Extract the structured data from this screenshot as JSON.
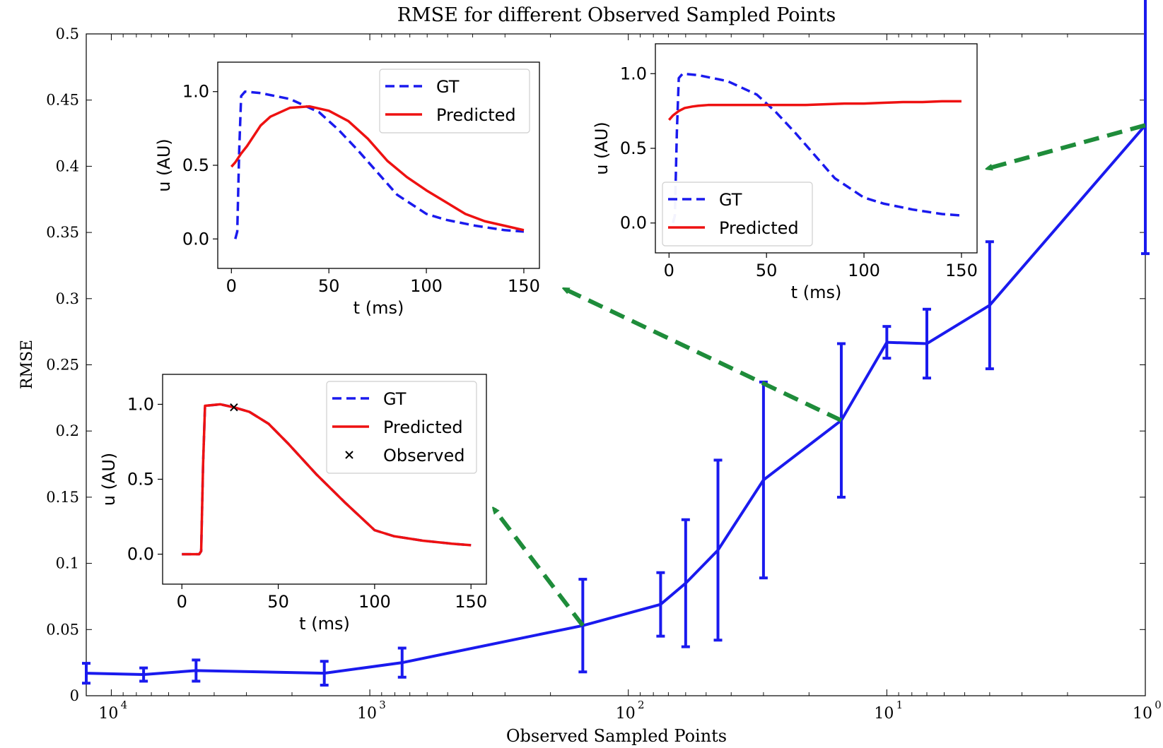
{
  "chart_data": [
    {
      "type": "line",
      "title": "RMSE for different Observed Sampled Points",
      "xlabel": "Observed Sampled Points",
      "ylabel": "RMSE",
      "x_scale": "log",
      "x_reversed": true,
      "xlim": [
        12500,
        1
      ],
      "ylim": [
        0,
        0.5
      ],
      "x_ticks": [
        {
          "value": 10000,
          "label": "10",
          "exp": "4"
        },
        {
          "value": 1000,
          "label": "10",
          "exp": "3"
        },
        {
          "value": 100,
          "label": "10",
          "exp": "2"
        },
        {
          "value": 10,
          "label": "10",
          "exp": "1"
        },
        {
          "value": 1,
          "label": "10",
          "exp": "0"
        }
      ],
      "y_ticks": [
        {
          "value": 0,
          "label": "0"
        },
        {
          "value": 0.05,
          "label": "0.05"
        },
        {
          "value": 0.1,
          "label": "0.1"
        },
        {
          "value": 0.15,
          "label": "0.15"
        },
        {
          "value": 0.2,
          "label": "0.2"
        },
        {
          "value": 0.25,
          "label": "0.25"
        },
        {
          "value": 0.3,
          "label": "0.3"
        },
        {
          "value": 0.35,
          "label": "0.35"
        },
        {
          "value": 0.4,
          "label": "0.4"
        },
        {
          "value": 0.45,
          "label": "0.45"
        },
        {
          "value": 0.5,
          "label": "0.5"
        }
      ],
      "grid": false,
      "series": [
        {
          "color": "#1a1aee",
          "x": [
            12500,
            7500,
            4700,
            1500,
            750,
            150,
            75,
            60,
            45,
            30,
            15,
            10,
            7,
            4,
            1
          ],
          "y": [
            0.017,
            0.016,
            0.019,
            0.017,
            0.025,
            0.053,
            0.069,
            0.085,
            0.11,
            0.163,
            0.208,
            0.267,
            0.266,
            0.295,
            0.431
          ],
          "err": [
            0.0075,
            0.005,
            0.008,
            0.009,
            0.011,
            0.035,
            0.024,
            0.048,
            0.068,
            0.074,
            0.058,
            0.012,
            0.026,
            0.048,
            0.097
          ]
        }
      ],
      "arrows": [
        {
          "from": {
            "x": 150,
            "y": 0.053
          },
          "to_inset": 0
        },
        {
          "from": {
            "x": 15,
            "y": 0.208
          },
          "to_inset": 1
        },
        {
          "from": {
            "x": 1,
            "y": 0.431
          },
          "to_inset": 2
        }
      ],
      "arrow_color": "#1e8c3a"
    },
    {
      "type": "line",
      "xlabel": "t (ms)",
      "ylabel": "u (AU)",
      "xlim": [
        -10,
        158
      ],
      "ylim": [
        -0.2,
        1.2
      ],
      "x_ticks": [
        0,
        50,
        100,
        150
      ],
      "y_ticks": [
        "0.0",
        "0.5",
        "1.0"
      ],
      "legend_position": "upper-right",
      "series": [
        {
          "name": "GT",
          "style": "dashed",
          "color": "#1a1aee",
          "x": [
            0,
            9,
            10,
            11,
            12,
            20,
            27,
            35,
            45,
            55,
            70,
            85,
            100,
            110,
            125,
            140,
            150
          ],
          "y": [
            0.0,
            0.0,
            0.02,
            0.6,
            0.99,
            1.0,
            0.98,
            0.95,
            0.87,
            0.74,
            0.53,
            0.34,
            0.16,
            0.12,
            0.09,
            0.07,
            0.06
          ]
        },
        {
          "name": "Predicted",
          "style": "solid",
          "color": "#ee1111",
          "x": [
            0,
            9,
            10,
            11,
            12,
            20,
            27,
            35,
            45,
            55,
            70,
            85,
            100,
            110,
            125,
            140,
            150
          ],
          "y": [
            0.0,
            0.0,
            0.02,
            0.6,
            0.99,
            1.0,
            0.98,
            0.95,
            0.87,
            0.74,
            0.53,
            0.34,
            0.16,
            0.12,
            0.09,
            0.07,
            0.06
          ]
        },
        {
          "name": "Observed",
          "style": "marker",
          "marker": "x",
          "color": "#000000",
          "x": [
            27
          ],
          "y": [
            0.98
          ]
        }
      ]
    },
    {
      "type": "line",
      "xlabel": "t (ms)",
      "ylabel": "u (AU)",
      "xlim": [
        -7,
        158
      ],
      "ylim": [
        -0.2,
        1.2
      ],
      "x_ticks": [
        0,
        50,
        100,
        150
      ],
      "y_ticks": [
        "0.0",
        "0.5",
        "1.0"
      ],
      "legend_position": "upper-right",
      "series": [
        {
          "name": "GT",
          "style": "dashed",
          "color": "#1a1aee",
          "x": [
            2,
            3,
            4,
            5,
            7,
            15,
            30,
            45,
            55,
            65,
            75,
            85,
            100,
            110,
            125,
            140,
            150
          ],
          "y": [
            0.0,
            0.05,
            0.6,
            0.97,
            1.0,
            0.99,
            0.95,
            0.86,
            0.74,
            0.6,
            0.45,
            0.3,
            0.17,
            0.13,
            0.09,
            0.06,
            0.05
          ]
        },
        {
          "name": "Predicted",
          "style": "solid",
          "color": "#ee1111",
          "x": [
            0,
            2,
            5,
            8,
            12,
            15,
            20,
            30,
            40,
            50,
            60,
            70,
            80,
            90,
            100,
            110,
            120,
            130,
            140,
            150
          ],
          "y": [
            0.49,
            0.52,
            0.58,
            0.63,
            0.71,
            0.77,
            0.83,
            0.89,
            0.9,
            0.87,
            0.8,
            0.68,
            0.53,
            0.42,
            0.33,
            0.25,
            0.17,
            0.12,
            0.09,
            0.06
          ]
        }
      ]
    },
    {
      "type": "line",
      "xlabel": "t (ms)",
      "ylabel": "u (AU)",
      "xlim": [
        -7,
        158
      ],
      "ylim": [
        -0.2,
        1.2
      ],
      "x_ticks": [
        0,
        50,
        100,
        150
      ],
      "y_ticks": [
        "0.0",
        "0.5",
        "1.0"
      ],
      "legend_position": "lower-left",
      "series": [
        {
          "name": "GT",
          "style": "dashed",
          "color": "#1a1aee",
          "x": [
            2,
            3,
            4,
            5,
            7,
            15,
            30,
            45,
            55,
            65,
            75,
            85,
            100,
            110,
            125,
            140,
            150
          ],
          "y": [
            0.0,
            0.05,
            0.6,
            0.97,
            1.0,
            0.99,
            0.95,
            0.86,
            0.74,
            0.6,
            0.45,
            0.3,
            0.17,
            0.13,
            0.09,
            0.06,
            0.05
          ]
        },
        {
          "name": "Predicted",
          "style": "solid",
          "color": "#ee1111",
          "x": [
            0,
            2,
            5,
            8,
            12,
            15,
            20,
            30,
            40,
            50,
            60,
            70,
            80,
            90,
            100,
            110,
            120,
            130,
            140,
            150
          ],
          "y": [
            0.69,
            0.72,
            0.75,
            0.77,
            0.78,
            0.785,
            0.79,
            0.79,
            0.79,
            0.79,
            0.79,
            0.79,
            0.795,
            0.8,
            0.8,
            0.805,
            0.81,
            0.81,
            0.815,
            0.815
          ]
        }
      ]
    }
  ]
}
